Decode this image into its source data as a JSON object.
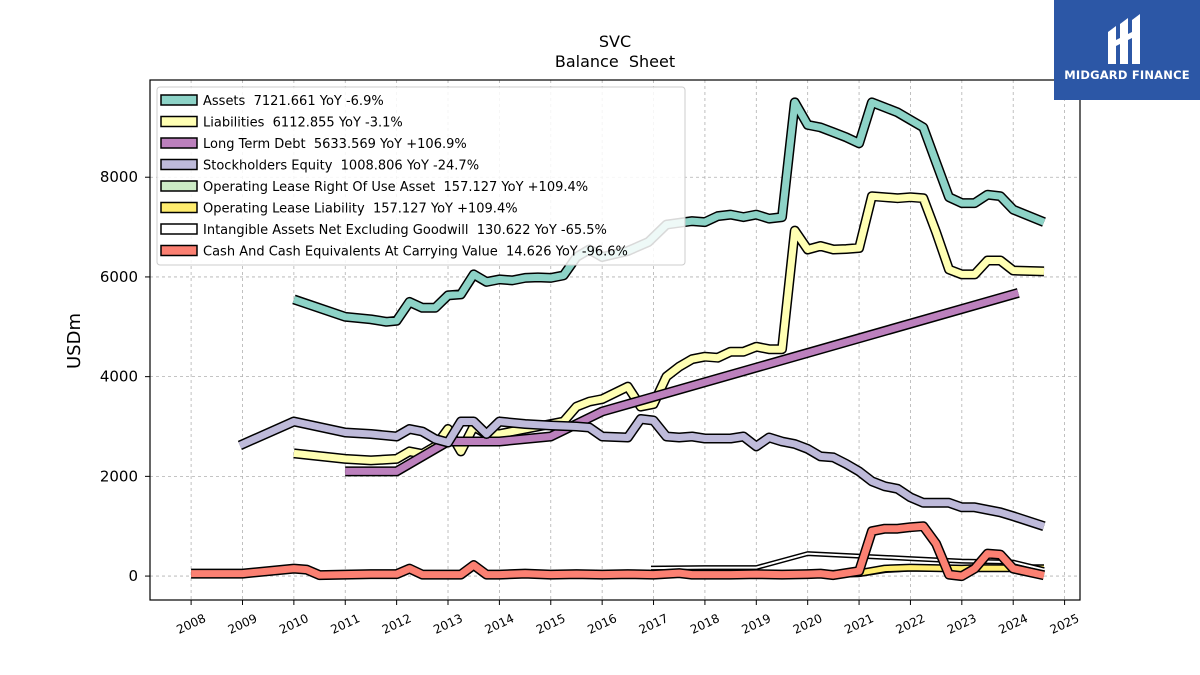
{
  "brand": {
    "name": "MIDGARD FINANCE"
  },
  "chart_data": {
    "type": "line",
    "title": "SVC",
    "subtitle": "Balance  Sheet",
    "ylabel": "USDm",
    "xlabel": "",
    "xlim": [
      2007.2,
      2025.3
    ],
    "ylim": [
      -480,
      9950
    ],
    "x_ticks": [
      "2008",
      "2009",
      "2010",
      "2011",
      "2012",
      "2013",
      "2014",
      "2015",
      "2016",
      "2017",
      "2018",
      "2019",
      "2020",
      "2021",
      "2022",
      "2023",
      "2024",
      "2025"
    ],
    "y_ticks": [
      0,
      2000,
      4000,
      6000,
      8000
    ],
    "grid": true,
    "legend_position": "top-left",
    "series": [
      {
        "name": "Assets",
        "legend": "Assets  7121.661 YoY -6.9%",
        "color": "#8dd3c7",
        "width": 7,
        "points": [
          [
            2010.0,
            5550
          ],
          [
            2011.0,
            5200
          ],
          [
            2011.5,
            5150
          ],
          [
            2011.8,
            5100
          ],
          [
            2012.0,
            5120
          ],
          [
            2012.25,
            5500
          ],
          [
            2012.5,
            5380
          ],
          [
            2012.75,
            5380
          ],
          [
            2013.0,
            5630
          ],
          [
            2013.25,
            5650
          ],
          [
            2013.5,
            6050
          ],
          [
            2013.75,
            5900
          ],
          [
            2014.0,
            5950
          ],
          [
            2014.25,
            5930
          ],
          [
            2014.5,
            5980
          ],
          [
            2014.75,
            5990
          ],
          [
            2015.0,
            5980
          ],
          [
            2015.25,
            6030
          ],
          [
            2015.5,
            6400
          ],
          [
            2015.75,
            6550
          ],
          [
            2016.0,
            6400
          ],
          [
            2016.5,
            6520
          ],
          [
            2016.9,
            6700
          ],
          [
            2017.25,
            7050
          ],
          [
            2017.75,
            7120
          ],
          [
            2018.0,
            7100
          ],
          [
            2018.25,
            7220
          ],
          [
            2018.5,
            7250
          ],
          [
            2018.75,
            7200
          ],
          [
            2019.0,
            7250
          ],
          [
            2019.25,
            7170
          ],
          [
            2019.5,
            7200
          ],
          [
            2019.75,
            9500
          ],
          [
            2020.0,
            9050
          ],
          [
            2020.25,
            9000
          ],
          [
            2020.5,
            8900
          ],
          [
            2020.75,
            8800
          ],
          [
            2021.0,
            8680
          ],
          [
            2021.25,
            9500
          ],
          [
            2021.5,
            9400
          ],
          [
            2021.75,
            9300
          ],
          [
            2022.0,
            9150
          ],
          [
            2022.25,
            9000
          ],
          [
            2022.5,
            8300
          ],
          [
            2022.75,
            7600
          ],
          [
            2023.0,
            7480
          ],
          [
            2023.25,
            7480
          ],
          [
            2023.5,
            7650
          ],
          [
            2023.75,
            7620
          ],
          [
            2024.0,
            7350
          ],
          [
            2024.6,
            7100
          ]
        ]
      },
      {
        "name": "Liabilities",
        "legend": "Liabilities  6112.855 YoY -3.1%",
        "color": "#ffffb3",
        "width": 7,
        "points": [
          [
            2010.0,
            2460
          ],
          [
            2011.0,
            2350
          ],
          [
            2011.5,
            2320
          ],
          [
            2012.0,
            2350
          ],
          [
            2012.25,
            2500
          ],
          [
            2012.5,
            2450
          ],
          [
            2012.75,
            2600
          ],
          [
            2013.0,
            2950
          ],
          [
            2013.25,
            2500
          ],
          [
            2013.5,
            3000
          ],
          [
            2013.75,
            2850
          ],
          [
            2014.0,
            2850
          ],
          [
            2014.5,
            2950
          ],
          [
            2015.0,
            3050
          ],
          [
            2015.25,
            3100
          ],
          [
            2015.5,
            3400
          ],
          [
            2015.75,
            3500
          ],
          [
            2016.0,
            3550
          ],
          [
            2016.5,
            3800
          ],
          [
            2016.75,
            3400
          ],
          [
            2017.0,
            3450
          ],
          [
            2017.25,
            4000
          ],
          [
            2017.5,
            4200
          ],
          [
            2017.75,
            4350
          ],
          [
            2018.0,
            4400
          ],
          [
            2018.25,
            4380
          ],
          [
            2018.5,
            4500
          ],
          [
            2018.75,
            4500
          ],
          [
            2019.0,
            4600
          ],
          [
            2019.25,
            4550
          ],
          [
            2019.5,
            4550
          ],
          [
            2019.75,
            6930
          ],
          [
            2020.0,
            6550
          ],
          [
            2020.25,
            6620
          ],
          [
            2020.5,
            6550
          ],
          [
            2020.75,
            6560
          ],
          [
            2021.0,
            6580
          ],
          [
            2021.25,
            7620
          ],
          [
            2021.5,
            7600
          ],
          [
            2021.75,
            7580
          ],
          [
            2022.0,
            7600
          ],
          [
            2022.25,
            7580
          ],
          [
            2022.5,
            6900
          ],
          [
            2022.75,
            6150
          ],
          [
            2023.0,
            6050
          ],
          [
            2023.25,
            6050
          ],
          [
            2023.5,
            6330
          ],
          [
            2023.75,
            6330
          ],
          [
            2024.0,
            6130
          ],
          [
            2024.6,
            6110
          ]
        ]
      },
      {
        "name": "Long Term Debt",
        "legend": "Long Term Debt  5633.569 YoY +106.9%",
        "color": "#bc80bd",
        "width": 7,
        "points": [
          [
            2011.0,
            2100
          ],
          [
            2012.0,
            2100
          ],
          [
            2013.0,
            2700
          ],
          [
            2014.0,
            2700
          ],
          [
            2015.0,
            2800
          ],
          [
            2016.0,
            3300
          ],
          [
            2024.1,
            5680
          ]
        ]
      },
      {
        "name": "Stockholders Equity",
        "legend": "Stockholders Equity  1008.806 YoY -24.7%",
        "color": "#bebada",
        "width": 7,
        "points": [
          [
            2008.95,
            2620
          ],
          [
            2010.0,
            3100
          ],
          [
            2011.0,
            2880
          ],
          [
            2011.5,
            2850
          ],
          [
            2012.0,
            2800
          ],
          [
            2012.25,
            2950
          ],
          [
            2012.5,
            2900
          ],
          [
            2012.75,
            2750
          ],
          [
            2013.0,
            2680
          ],
          [
            2013.25,
            3100
          ],
          [
            2013.5,
            3100
          ],
          [
            2013.75,
            2850
          ],
          [
            2014.0,
            3100
          ],
          [
            2014.5,
            3050
          ],
          [
            2015.0,
            3020
          ],
          [
            2015.5,
            3000
          ],
          [
            2015.75,
            2980
          ],
          [
            2016.0,
            2800
          ],
          [
            2016.5,
            2780
          ],
          [
            2016.75,
            3150
          ],
          [
            2017.0,
            3120
          ],
          [
            2017.25,
            2800
          ],
          [
            2017.5,
            2780
          ],
          [
            2017.75,
            2800
          ],
          [
            2018.0,
            2760
          ],
          [
            2018.5,
            2760
          ],
          [
            2018.75,
            2800
          ],
          [
            2019.0,
            2600
          ],
          [
            2019.25,
            2780
          ],
          [
            2019.5,
            2700
          ],
          [
            2019.75,
            2650
          ],
          [
            2020.0,
            2550
          ],
          [
            2020.25,
            2400
          ],
          [
            2020.5,
            2380
          ],
          [
            2020.75,
            2250
          ],
          [
            2021.0,
            2100
          ],
          [
            2021.25,
            1900
          ],
          [
            2021.5,
            1800
          ],
          [
            2021.75,
            1750
          ],
          [
            2022.0,
            1580
          ],
          [
            2022.25,
            1470
          ],
          [
            2022.75,
            1470
          ],
          [
            2023.0,
            1380
          ],
          [
            2023.25,
            1380
          ],
          [
            2023.5,
            1330
          ],
          [
            2023.75,
            1280
          ],
          [
            2024.0,
            1200
          ],
          [
            2024.6,
            1000
          ]
        ]
      },
      {
        "name": "Operating Lease Right Of Use Asset",
        "legend": "Operating Lease Right Of Use Asset  157.127 YoY +109.4%",
        "color": "#ccebc5",
        "width": 3,
        "points": [
          [
            2019.0,
            30
          ],
          [
            2020.0,
            30
          ],
          [
            2021.0,
            40
          ],
          [
            2021.5,
            120
          ],
          [
            2022.0,
            150
          ],
          [
            2023.0,
            140
          ],
          [
            2023.25,
            160
          ],
          [
            2024.0,
            150
          ],
          [
            2024.6,
            157
          ]
        ]
      },
      {
        "name": "Operating Lease Liability",
        "legend": "Operating Lease Liability  157.127 YoY +109.4%",
        "color": "#ffed6f",
        "width": 5,
        "points": [
          [
            2019.0,
            30
          ],
          [
            2020.0,
            30
          ],
          [
            2021.0,
            60
          ],
          [
            2021.5,
            150
          ],
          [
            2022.0,
            170
          ],
          [
            2023.0,
            150
          ],
          [
            2023.25,
            160
          ],
          [
            2024.0,
            155
          ],
          [
            2024.6,
            157
          ]
        ]
      },
      {
        "name": "Intangible Assets Net Excluding Goodwill",
        "legend": "Intangible Assets Net Excluding Goodwill  130.622 YoY -65.5%",
        "color": "#ffffff",
        "width": 2,
        "points": [
          [
            2016.95,
            160
          ],
          [
            2018.0,
            170
          ],
          [
            2019.0,
            170
          ],
          [
            2020.0,
            450
          ],
          [
            2021.0,
            400
          ],
          [
            2022.0,
            350
          ],
          [
            2023.0,
            300
          ],
          [
            2024.0,
            280
          ],
          [
            2024.6,
            130
          ]
        ]
      },
      {
        "name": "Cash And Cash Equivalents At Carrying Value",
        "legend": "Cash And Cash Equivalents At Carrying Value  14.626 YoY -96.6%",
        "color": "#fb8072",
        "width": 7,
        "points": [
          [
            2008.0,
            50
          ],
          [
            2009.0,
            50
          ],
          [
            2010.0,
            150
          ],
          [
            2010.25,
            130
          ],
          [
            2010.5,
            20
          ],
          [
            2011.0,
            30
          ],
          [
            2011.5,
            40
          ],
          [
            2012.0,
            40
          ],
          [
            2012.25,
            150
          ],
          [
            2012.5,
            30
          ],
          [
            2013.0,
            30
          ],
          [
            2013.25,
            30
          ],
          [
            2013.5,
            220
          ],
          [
            2013.75,
            30
          ],
          [
            2014.0,
            30
          ],
          [
            2014.5,
            50
          ],
          [
            2015.0,
            30
          ],
          [
            2015.5,
            40
          ],
          [
            2016.0,
            30
          ],
          [
            2016.5,
            40
          ],
          [
            2017.0,
            30
          ],
          [
            2017.5,
            60
          ],
          [
            2017.75,
            30
          ],
          [
            2018.0,
            30
          ],
          [
            2018.5,
            30
          ],
          [
            2019.0,
            40
          ],
          [
            2019.5,
            30
          ],
          [
            2020.0,
            40
          ],
          [
            2020.25,
            50
          ],
          [
            2020.5,
            20
          ],
          [
            2021.0,
            100
          ],
          [
            2021.25,
            900
          ],
          [
            2021.5,
            950
          ],
          [
            2021.75,
            950
          ],
          [
            2022.0,
            980
          ],
          [
            2022.25,
            1000
          ],
          [
            2022.5,
            650
          ],
          [
            2022.75,
            30
          ],
          [
            2023.0,
            0
          ],
          [
            2023.25,
            150
          ],
          [
            2023.5,
            450
          ],
          [
            2023.75,
            430
          ],
          [
            2024.0,
            150
          ],
          [
            2024.6,
            15
          ]
        ]
      }
    ]
  }
}
